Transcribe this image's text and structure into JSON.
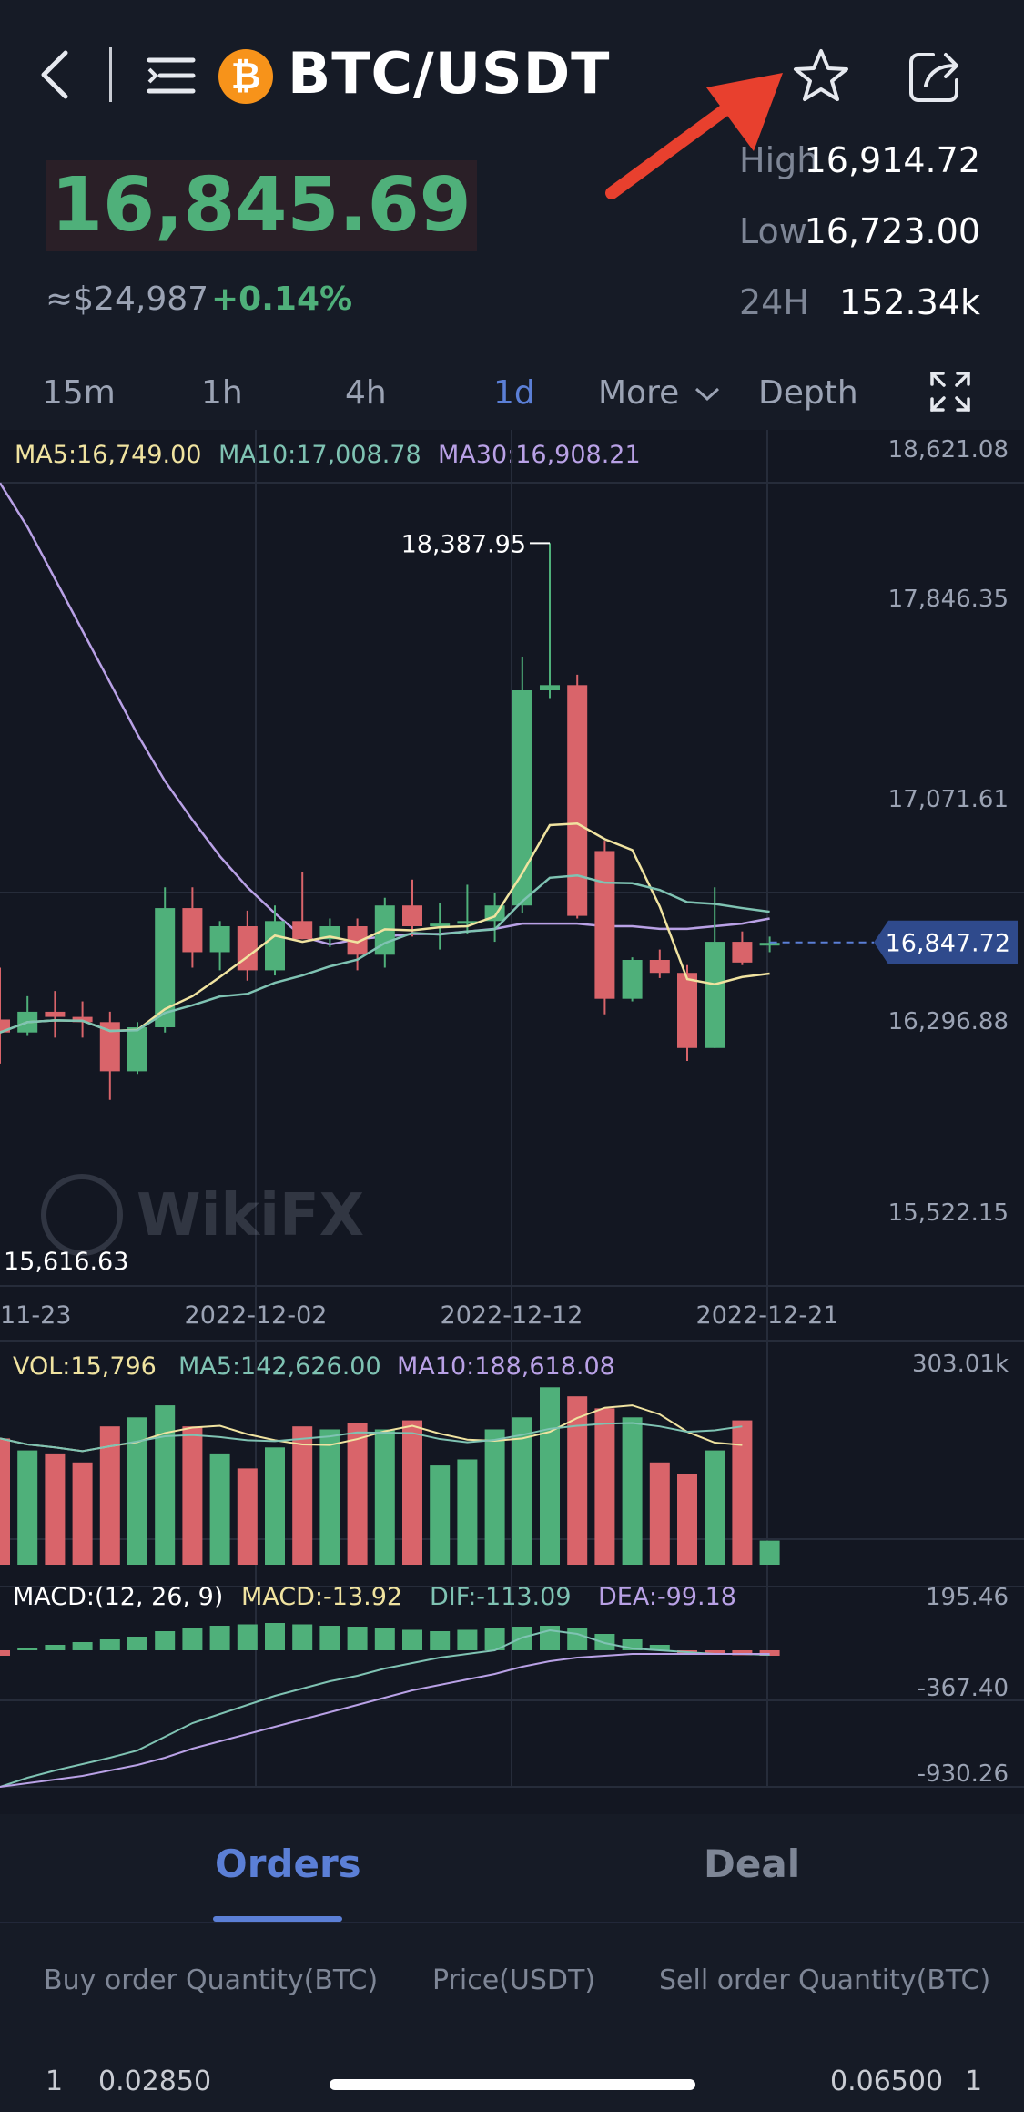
{
  "header": {
    "pair": "BTC/USDT",
    "logo_glyph": "₿",
    "icons": [
      "back-icon",
      "menu-icon",
      "bitcoin-logo",
      "star-icon",
      "share-icon"
    ]
  },
  "price": {
    "last": "16,845.69",
    "usd": "≈$24,987",
    "change": "+0.14%",
    "high_label": "High",
    "high": "16,914.72",
    "low_label": "Low",
    "low": "16,723.00",
    "vol_label": "24H",
    "vol": "152.34k"
  },
  "timeframes": [
    {
      "label": "15m"
    },
    {
      "label": "1h"
    },
    {
      "label": "4h"
    },
    {
      "label": "1d"
    },
    {
      "label": "More"
    },
    {
      "label": "Depth"
    }
  ],
  "ma_legend": {
    "ma5": "MA5:16,749.00",
    "ma10": "MA10:17,008.78",
    "ma30": "MA30:16,908.21"
  },
  "chart_data": {
    "type": "candlestick",
    "y_ticks": [
      "18,621.08",
      "17,846.35",
      "17,071.61",
      "16,296.88",
      "15,522.15"
    ],
    "x_ticks": [
      "11-23",
      "2022-12-02",
      "2022-12-12",
      "2022-12-21"
    ],
    "high_marker": "18,387.95",
    "low_marker": "15,616.63",
    "current_price_tag": "16,847.72",
    "colors": {
      "up": "#4fb07a",
      "down": "#d9646a",
      "ma5": "#f0e3a0",
      "ma10": "#7fc3b3",
      "ma30": "#b9a1e6"
    },
    "candles": [
      {
        "o": 16550,
        "h": 16750,
        "l": 16380,
        "c": 16500
      },
      {
        "o": 16500,
        "h": 16640,
        "l": 16490,
        "c": 16580
      },
      {
        "o": 16580,
        "h": 16660,
        "l": 16480,
        "c": 16560
      },
      {
        "o": 16560,
        "h": 16620,
        "l": 16480,
        "c": 16540
      },
      {
        "o": 16540,
        "h": 16580,
        "l": 16240,
        "c": 16350
      },
      {
        "o": 16350,
        "h": 16540,
        "l": 16340,
        "c": 16520
      },
      {
        "o": 16520,
        "h": 17060,
        "l": 16500,
        "c": 16980
      },
      {
        "o": 16980,
        "h": 17060,
        "l": 16750,
        "c": 16810
      },
      {
        "o": 16810,
        "h": 16930,
        "l": 16740,
        "c": 16910
      },
      {
        "o": 16910,
        "h": 16970,
        "l": 16700,
        "c": 16740
      },
      {
        "o": 16740,
        "h": 16990,
        "l": 16720,
        "c": 16930
      },
      {
        "o": 16930,
        "h": 17120,
        "l": 16860,
        "c": 16860
      },
      {
        "o": 16860,
        "h": 16940,
        "l": 16830,
        "c": 16910
      },
      {
        "o": 16910,
        "h": 16940,
        "l": 16740,
        "c": 16800
      },
      {
        "o": 16800,
        "h": 17020,
        "l": 16750,
        "c": 16990
      },
      {
        "o": 16990,
        "h": 17090,
        "l": 16870,
        "c": 16910
      },
      {
        "o": 16910,
        "h": 17000,
        "l": 16820,
        "c": 16920
      },
      {
        "o": 16920,
        "h": 17070,
        "l": 16880,
        "c": 16930
      },
      {
        "o": 16930,
        "h": 17040,
        "l": 16850,
        "c": 16990
      },
      {
        "o": 16990,
        "h": 17950,
        "l": 16960,
        "c": 17820
      },
      {
        "o": 17820,
        "h": 18388,
        "l": 17790,
        "c": 17840
      },
      {
        "o": 17840,
        "h": 17880,
        "l": 16940,
        "c": 16950
      },
      {
        "o": 17200,
        "h": 17240,
        "l": 16570,
        "c": 16630
      },
      {
        "o": 16630,
        "h": 16790,
        "l": 16620,
        "c": 16780
      },
      {
        "o": 16780,
        "h": 16820,
        "l": 16710,
        "c": 16730
      },
      {
        "o": 16730,
        "h": 16760,
        "l": 16390,
        "c": 16440
      },
      {
        "o": 16440,
        "h": 17060,
        "l": 16440,
        "c": 16850
      },
      {
        "o": 16850,
        "h": 16890,
        "l": 16760,
        "c": 16770
      },
      {
        "o": 16840,
        "h": 16870,
        "l": 16810,
        "c": 16846
      }
    ],
    "volume": {
      "legend_vol": "VOL:15,796",
      "legend_ma5": "MA5:142,626.00",
      "legend_ma10": "MA10:188,618.08",
      "y_tick": "303.01k",
      "values": [
        210,
        190,
        185,
        170,
        230,
        245,
        265,
        230,
        185,
        160,
        195,
        230,
        225,
        235,
        225,
        240,
        165,
        175,
        225,
        245,
        295,
        280,
        260,
        245,
        170,
        150,
        190,
        240,
        40
      ]
    },
    "macd": {
      "legend_params": "MACD:(12, 26, 9)",
      "legend_macd": "MACD:-13.92",
      "legend_dif": "DIF:-113.09",
      "legend_dea": "DEA:-99.18",
      "y_ticks": [
        "195.46",
        "-367.40",
        "-930.26"
      ],
      "hist": [
        -20,
        10,
        20,
        30,
        40,
        50,
        70,
        80,
        90,
        95,
        100,
        95,
        90,
        85,
        80,
        75,
        70,
        75,
        80,
        85,
        90,
        80,
        60,
        40,
        20,
        -10,
        -15,
        -18,
        -20
      ]
    }
  },
  "orders": {
    "tab_orders": "Orders",
    "tab_deal": "Deal",
    "col_buy": "Buy order",
    "col_qty1": "Quantity(BTC)",
    "col_price": "Price(USDT)",
    "col_sell": "Sell order",
    "col_qty2": "Quantity(BTC)",
    "row1_index": "1",
    "row1_buy_qty": "0.02850",
    "row1_sell_qty": "0.06500",
    "row1_sell_index": "1"
  }
}
